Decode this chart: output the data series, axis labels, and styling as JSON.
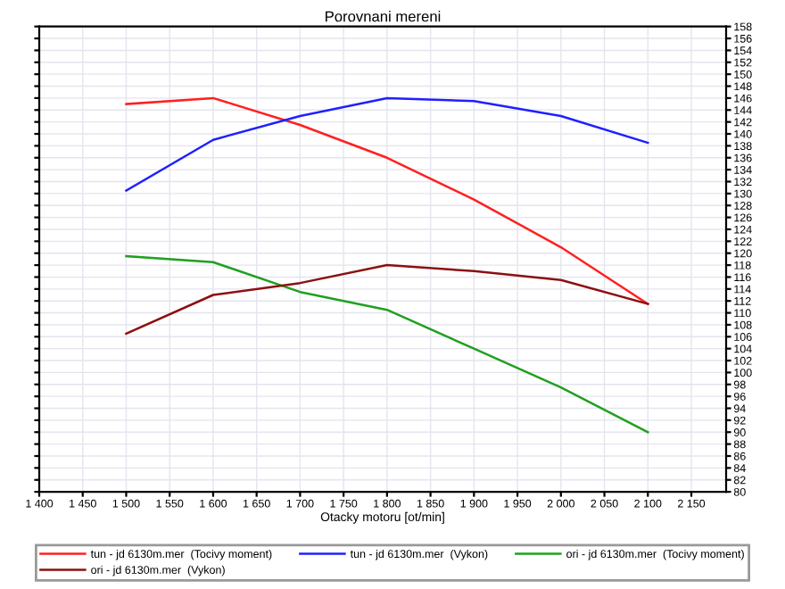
{
  "chart_data": {
    "type": "line",
    "title": "Porovnani mereni",
    "xlabel": "Otacky motoru [ot/min]",
    "x": [
      1500,
      1600,
      1700,
      1800,
      1900,
      2000,
      2100
    ],
    "series": [
      {
        "name": "tun - jd 6130m.mer  (Tocivy moment)",
        "color": "#ff2020",
        "values": [
          145,
          146,
          141.5,
          136,
          129,
          121,
          111.5
        ]
      },
      {
        "name": "tun - jd 6130m.mer  (Vykon)",
        "color": "#2020ff",
        "values": [
          130.5,
          139,
          143,
          146,
          145.5,
          143,
          138.5
        ]
      },
      {
        "name": "ori - jd 6130m.mer  (Tocivy moment)",
        "color": "#20a020",
        "values": [
          119.5,
          118.5,
          113.5,
          110.5,
          104,
          97.5,
          90
        ]
      },
      {
        "name": "ori - jd 6130m.mer  (Vykon)",
        "color": "#8b1010",
        "values": [
          106.5,
          113,
          115,
          118,
          117,
          115.5,
          111.5
        ]
      }
    ],
    "xlim": [
      1400,
      2190
    ],
    "xticks": [
      {
        "value": 1400,
        "label": "1 400"
      },
      {
        "value": 1450,
        "label": "1 450"
      },
      {
        "value": 1500,
        "label": "1 500"
      },
      {
        "value": 1550,
        "label": "1 550"
      },
      {
        "value": 1600,
        "label": "1 600"
      },
      {
        "value": 1650,
        "label": "1 650"
      },
      {
        "value": 1700,
        "label": "1 700"
      },
      {
        "value": 1750,
        "label": "1 750"
      },
      {
        "value": 1800,
        "label": "1 800"
      },
      {
        "value": 1850,
        "label": "1 850"
      },
      {
        "value": 1900,
        "label": "1 900"
      },
      {
        "value": 1950,
        "label": "1 950"
      },
      {
        "value": 2000,
        "label": "2 000"
      },
      {
        "value": 2050,
        "label": "2 050"
      },
      {
        "value": 2100,
        "label": "2 100"
      },
      {
        "value": 2150,
        "label": "2 150"
      }
    ],
    "ylim": [
      80,
      158
    ],
    "yticks": [
      80,
      82,
      84,
      86,
      88,
      90,
      92,
      94,
      96,
      98,
      100,
      102,
      104,
      106,
      108,
      110,
      112,
      114,
      116,
      118,
      120,
      122,
      124,
      126,
      128,
      130,
      132,
      134,
      136,
      138,
      140,
      142,
      144,
      146,
      148,
      150,
      152,
      154,
      156,
      158
    ],
    "grid": true,
    "legend": "bottom",
    "marker": "none",
    "line_style": "solid"
  }
}
